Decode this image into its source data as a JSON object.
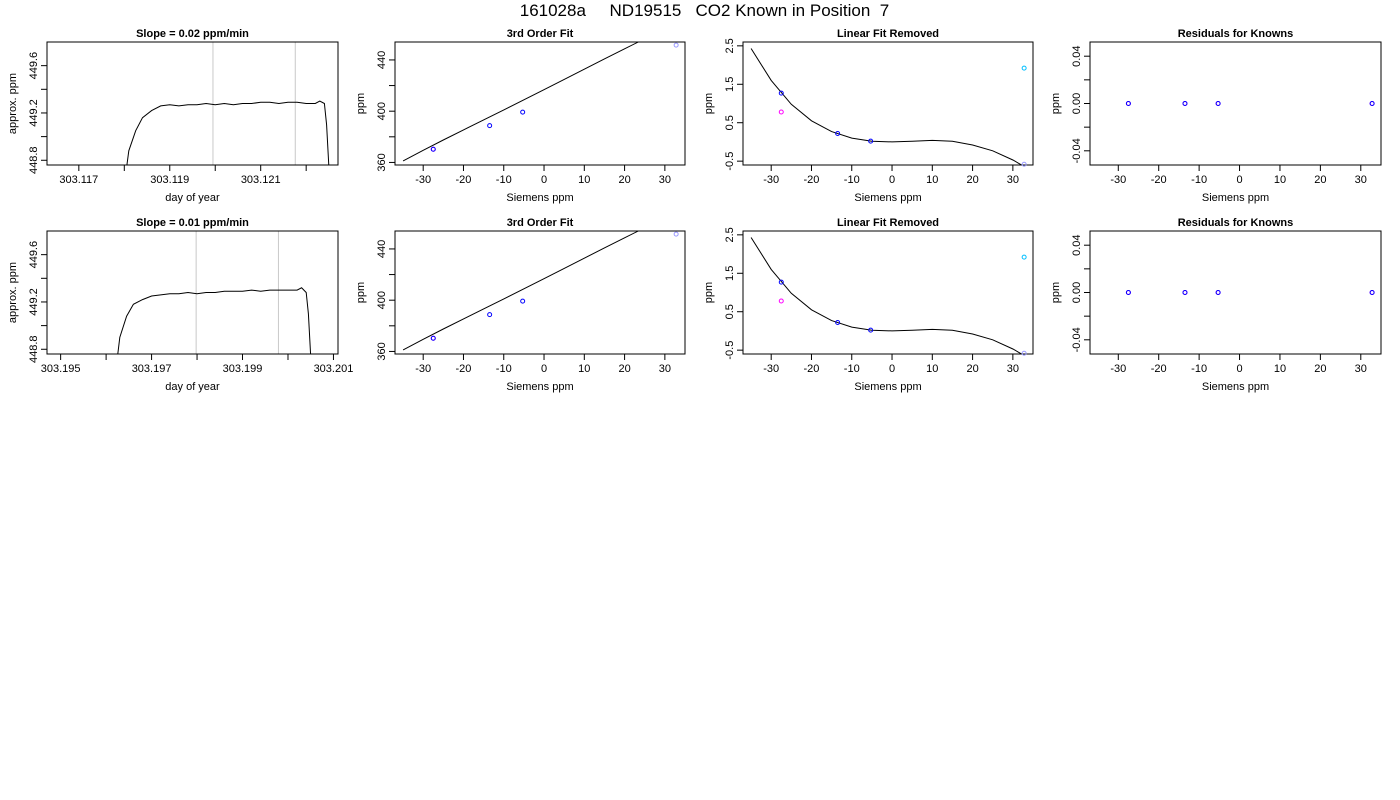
{
  "title": "161028a     ND19515   CO2 Known in Position  7",
  "chart_data": [
    {
      "type": "line",
      "title": "Slope =  0.02  ppm/min",
      "xlabel": "day of year",
      "ylabel": "approx. ppm",
      "xlim": [
        303.1163,
        303.1227
      ],
      "ylim": [
        448.76,
        449.8
      ],
      "xticks": [
        303.117,
        303.118,
        303.119,
        303.12,
        303.121,
        303.122
      ],
      "xtick_labels": [
        "303.117",
        "",
        "303.119",
        "",
        "303.121",
        ""
      ],
      "yticks": [
        448.8,
        449.0,
        449.2,
        449.4,
        449.6
      ],
      "ytick_labels": [
        "448.8",
        "",
        "449.2",
        "",
        "449.6"
      ],
      "vlines": [
        303.11995,
        303.12176
      ],
      "series": [
        {
          "x": [
            303.11805,
            303.1181,
            303.11825,
            303.1184,
            303.1186,
            303.1188,
            303.119,
            303.1192,
            303.1194,
            303.1196,
            303.1198,
            303.12,
            303.1202,
            303.1204,
            303.1206,
            303.1208,
            303.121,
            303.1212,
            303.1214,
            303.1216,
            303.1218,
            303.122,
            303.1222,
            303.1223,
            303.1224,
            303.12245,
            303.1225
          ],
          "values": [
            448.74,
            448.88,
            449.05,
            449.16,
            449.22,
            449.26,
            449.27,
            449.26,
            449.27,
            449.27,
            449.28,
            449.27,
            449.28,
            449.27,
            449.28,
            449.28,
            449.29,
            449.29,
            449.28,
            449.29,
            449.29,
            449.28,
            449.28,
            449.3,
            449.28,
            449.1,
            448.74
          ]
        }
      ]
    },
    {
      "type": "scatter",
      "title": "3rd Order Fit",
      "xlabel": "Siemens ppm",
      "ylabel": "ppm",
      "xlim": [
        -37,
        35
      ],
      "ylim": [
        358,
        454
      ],
      "xticks": [
        -30,
        -20,
        -10,
        0,
        10,
        20,
        30
      ],
      "xtick_labels": [
        "-30",
        "-20",
        "-10",
        "0",
        "10",
        "20",
        "30"
      ],
      "yticks": [
        360,
        380,
        400,
        420,
        440
      ],
      "ytick_labels": [
        "360",
        "",
        "400",
        "",
        "440"
      ],
      "fit_x": [
        -35,
        -30,
        -25,
        -20,
        -15,
        -10,
        -5,
        0,
        5,
        10,
        15,
        20,
        25,
        30,
        33
      ],
      "fit_y": [
        361.2,
        369.5,
        377.5,
        385.4,
        393.2,
        401.0,
        408.9,
        416.8,
        424.8,
        432.8,
        440.8,
        448.7,
        456.5,
        464.1,
        468.7
      ],
      "points": [
        {
          "x": -27.5,
          "y": 370.3,
          "color": "#ff00ff"
        },
        {
          "x": -27.5,
          "y": 370.3,
          "color": "#0000ff"
        },
        {
          "x": -13.5,
          "y": 388.7,
          "color": "#0000ff"
        },
        {
          "x": -5.3,
          "y": 399.3,
          "color": "#0000ff"
        },
        {
          "x": 32.8,
          "y": 451.6,
          "color": "#9999ff"
        }
      ]
    },
    {
      "type": "scatter",
      "title": "Linear Fit Removed",
      "xlabel": "Siemens ppm",
      "ylabel": "ppm",
      "xlim": [
        -37,
        35
      ],
      "ylim": [
        -0.6,
        2.6
      ],
      "xticks": [
        -30,
        -20,
        -10,
        0,
        10,
        20,
        30
      ],
      "xtick_labels": [
        "-30",
        "-20",
        "-10",
        "0",
        "10",
        "20",
        "30"
      ],
      "yticks": [
        -0.5,
        0.5,
        1.5,
        2.5
      ],
      "ytick_labels": [
        "-0.5",
        "0.5",
        "1.5",
        "2.5"
      ],
      "fit_x": [
        -35,
        -30,
        -25,
        -20,
        -15,
        -10,
        -5,
        0,
        5,
        10,
        15,
        20,
        25,
        30,
        33
      ],
      "fit_y": [
        2.43,
        1.6,
        0.98,
        0.55,
        0.27,
        0.1,
        0.02,
        0.0,
        0.02,
        0.04,
        0.02,
        -0.08,
        -0.23,
        -0.47,
        -0.65
      ],
      "points": [
        {
          "x": -27.5,
          "y": 1.27,
          "color": "#0000ff"
        },
        {
          "x": -27.5,
          "y": 0.78,
          "color": "#ff00ff"
        },
        {
          "x": -13.5,
          "y": 0.22,
          "color": "#0000ff"
        },
        {
          "x": -5.3,
          "y": 0.02,
          "color": "#0000ff"
        },
        {
          "x": 32.8,
          "y": 1.92,
          "color": "#00bfff"
        },
        {
          "x": 32.8,
          "y": -0.58,
          "color": "#9999ff"
        }
      ]
    },
    {
      "type": "scatter",
      "title": "Residuals for Knowns",
      "xlabel": "Siemens ppm",
      "ylabel": "ppm",
      "xlim": [
        -37,
        35
      ],
      "ylim": [
        -0.052,
        0.052
      ],
      "xticks": [
        -30,
        -20,
        -10,
        0,
        10,
        20,
        30
      ],
      "xtick_labels": [
        "-30",
        "-20",
        "-10",
        "0",
        "10",
        "20",
        "30"
      ],
      "yticks": [
        -0.04,
        -0.02,
        0.0,
        0.02,
        0.04
      ],
      "ytick_labels": [
        "-0.04",
        "",
        "0.00",
        "",
        "0.04"
      ],
      "points": [
        {
          "x": -27.5,
          "y": 0.0,
          "color": "#ff00ff"
        },
        {
          "x": -13.5,
          "y": 0.0,
          "color": "#ff00ff"
        },
        {
          "x": -5.3,
          "y": 0.0,
          "color": "#ff00ff"
        },
        {
          "x": 32.8,
          "y": 0.0,
          "color": "#ff00ff"
        },
        {
          "x": -27.5,
          "y": 0.0,
          "color": "#0000ff"
        },
        {
          "x": -13.5,
          "y": 0.0,
          "color": "#0000ff"
        },
        {
          "x": -5.3,
          "y": 0.0,
          "color": "#0000ff"
        },
        {
          "x": 32.8,
          "y": 0.0,
          "color": "#0000ff"
        }
      ]
    },
    {
      "type": "line",
      "title": "Slope =  0.01  ppm/min",
      "xlabel": "day of year",
      "ylabel": "approx. ppm",
      "xlim": [
        303.1947,
        303.2011
      ],
      "ylim": [
        448.76,
        449.8
      ],
      "xticks": [
        303.195,
        303.196,
        303.197,
        303.198,
        303.199,
        303.2,
        303.201
      ],
      "xtick_labels": [
        "303.195",
        "",
        "303.197",
        "",
        "303.199",
        "",
        "303.201"
      ],
      "yticks": [
        448.8,
        449.0,
        449.2,
        449.4,
        449.6
      ],
      "ytick_labels": [
        "448.8",
        "",
        "449.2",
        "",
        "449.6"
      ],
      "vlines": [
        303.19798,
        303.19979
      ],
      "series": [
        {
          "x": [
            303.19625,
            303.1963,
            303.19645,
            303.1966,
            303.1968,
            303.197,
            303.1972,
            303.1974,
            303.1976,
            303.1978,
            303.198,
            303.1982,
            303.1984,
            303.1986,
            303.1988,
            303.199,
            303.1992,
            303.1994,
            303.1996,
            303.1998,
            303.2,
            303.2002,
            303.2003,
            303.2004,
            303.20045,
            303.2005
          ],
          "values": [
            448.74,
            448.9,
            449.08,
            449.18,
            449.22,
            449.25,
            449.26,
            449.27,
            449.27,
            449.28,
            449.27,
            449.28,
            449.28,
            449.29,
            449.29,
            449.29,
            449.3,
            449.29,
            449.3,
            449.3,
            449.3,
            449.3,
            449.32,
            449.28,
            449.1,
            448.74
          ]
        }
      ]
    },
    {
      "type": "scatter",
      "title": "3rd Order Fit",
      "xlabel": "Siemens ppm",
      "ylabel": "ppm",
      "xlim": [
        -37,
        35
      ],
      "ylim": [
        358,
        454
      ],
      "xticks": [
        -30,
        -20,
        -10,
        0,
        10,
        20,
        30
      ],
      "xtick_labels": [
        "-30",
        "-20",
        "-10",
        "0",
        "10",
        "20",
        "30"
      ],
      "yticks": [
        360,
        380,
        400,
        420,
        440
      ],
      "ytick_labels": [
        "360",
        "",
        "400",
        "",
        "440"
      ],
      "fit_x": [
        -35,
        -30,
        -25,
        -20,
        -15,
        -10,
        -5,
        0,
        5,
        10,
        15,
        20,
        25,
        30,
        33
      ],
      "fit_y": [
        361.2,
        369.5,
        377.5,
        385.4,
        393.2,
        401.0,
        408.9,
        416.8,
        424.8,
        432.8,
        440.8,
        448.7,
        456.5,
        464.1,
        468.7
      ],
      "points": [
        {
          "x": -27.5,
          "y": 370.3,
          "color": "#ff00ff"
        },
        {
          "x": -27.5,
          "y": 370.3,
          "color": "#0000ff"
        },
        {
          "x": -13.5,
          "y": 388.7,
          "color": "#0000ff"
        },
        {
          "x": -5.3,
          "y": 399.3,
          "color": "#0000ff"
        },
        {
          "x": 32.8,
          "y": 451.6,
          "color": "#9999ff"
        }
      ]
    },
    {
      "type": "scatter",
      "title": "Linear Fit Removed",
      "xlabel": "Siemens ppm",
      "ylabel": "ppm",
      "xlim": [
        -37,
        35
      ],
      "ylim": [
        -0.6,
        2.6
      ],
      "xticks": [
        -30,
        -20,
        -10,
        0,
        10,
        20,
        30
      ],
      "xtick_labels": [
        "-30",
        "-20",
        "-10",
        "0",
        "10",
        "20",
        "30"
      ],
      "yticks": [
        -0.5,
        0.5,
        1.5,
        2.5
      ],
      "ytick_labels": [
        "-0.5",
        "0.5",
        "1.5",
        "2.5"
      ],
      "fit_x": [
        -35,
        -30,
        -25,
        -20,
        -15,
        -10,
        -5,
        0,
        5,
        10,
        15,
        20,
        25,
        30,
        33
      ],
      "fit_y": [
        2.43,
        1.6,
        0.98,
        0.55,
        0.27,
        0.1,
        0.02,
        0.0,
        0.02,
        0.04,
        0.02,
        -0.08,
        -0.23,
        -0.47,
        -0.65
      ],
      "points": [
        {
          "x": -27.5,
          "y": 1.27,
          "color": "#0000ff"
        },
        {
          "x": -27.5,
          "y": 0.78,
          "color": "#ff00ff"
        },
        {
          "x": -13.5,
          "y": 0.22,
          "color": "#0000ff"
        },
        {
          "x": -5.3,
          "y": 0.02,
          "color": "#0000ff"
        },
        {
          "x": 32.8,
          "y": 1.92,
          "color": "#00bfff"
        },
        {
          "x": 32.8,
          "y": -0.58,
          "color": "#9999ff"
        }
      ]
    },
    {
      "type": "scatter",
      "title": "Residuals for Knowns",
      "xlabel": "Siemens ppm",
      "ylabel": "ppm",
      "xlim": [
        -37,
        35
      ],
      "ylim": [
        -0.052,
        0.052
      ],
      "xticks": [
        -30,
        -20,
        -10,
        0,
        10,
        20,
        30
      ],
      "xtick_labels": [
        "-30",
        "-20",
        "-10",
        "0",
        "10",
        "20",
        "30"
      ],
      "yticks": [
        -0.04,
        -0.02,
        0.0,
        0.02,
        0.04
      ],
      "ytick_labels": [
        "-0.04",
        "",
        "0.00",
        "",
        "0.04"
      ],
      "points": [
        {
          "x": -27.5,
          "y": 0.0,
          "color": "#ff00ff"
        },
        {
          "x": -13.5,
          "y": 0.0,
          "color": "#ff00ff"
        },
        {
          "x": -5.3,
          "y": 0.0,
          "color": "#ff00ff"
        },
        {
          "x": 32.8,
          "y": 0.0,
          "color": "#ff00ff"
        },
        {
          "x": -27.5,
          "y": 0.0,
          "color": "#0000ff"
        },
        {
          "x": -13.5,
          "y": 0.0,
          "color": "#0000ff"
        },
        {
          "x": -5.3,
          "y": 0.0,
          "color": "#0000ff"
        },
        {
          "x": 32.8,
          "y": 0.0,
          "color": "#0000ff"
        }
      ]
    }
  ]
}
